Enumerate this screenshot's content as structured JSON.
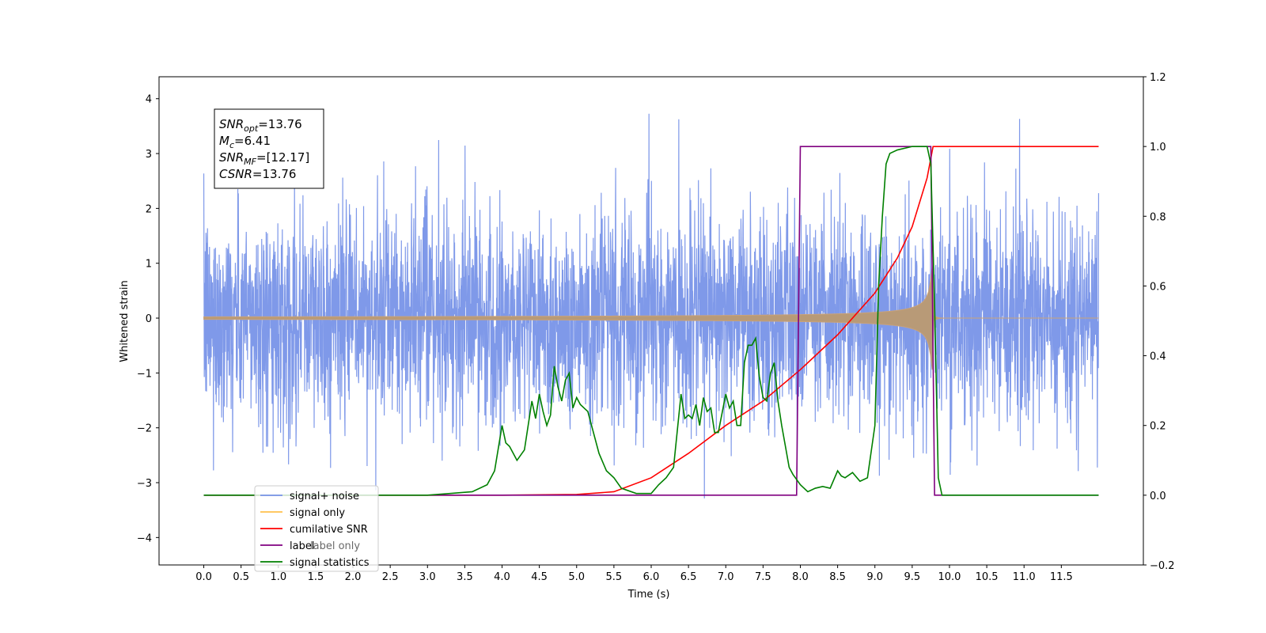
{
  "chart_data": {
    "type": "line",
    "xlabel": "Time (s)",
    "ylabel_left": "Whitened strain",
    "ylabel_right": "",
    "xlim": [
      -0.6,
      12.6
    ],
    "ylim_left": [
      -4.5,
      4.4
    ],
    "ylim_right": [
      -0.2,
      1.2
    ],
    "x_ticks": [
      0.0,
      0.5,
      1.0,
      1.5,
      2.0,
      2.5,
      3.0,
      3.5,
      4.0,
      4.5,
      5.0,
      5.5,
      6.0,
      6.5,
      7.0,
      7.5,
      8.0,
      8.5,
      9.0,
      9.5,
      10.0,
      10.5,
      11.0,
      11.5
    ],
    "x_tick_labels": [
      "0.0",
      "0.5",
      "1.0",
      "1.5",
      "2.0",
      "2.5",
      "3.0",
      "3.5",
      "4.0",
      "4.5",
      "5.0",
      "5.5",
      "6.0",
      "6.5",
      "7.0",
      "7.5",
      "8.0",
      "8.5",
      "9.0",
      "9.5",
      "10.0",
      "10.5",
      "11.0",
      "11.5"
    ],
    "y_left_ticks": [
      -4,
      -3,
      -2,
      -1,
      0,
      1,
      2,
      3,
      4
    ],
    "y_left_tick_labels": [
      "−4",
      "−3",
      "−2",
      "−1",
      "0",
      "1",
      "2",
      "3",
      "4"
    ],
    "y_right_ticks": [
      -0.2,
      0.0,
      0.2,
      0.4,
      0.6,
      0.8,
      1.0,
      1.2
    ],
    "y_right_tick_labels": [
      "−0.2",
      "0.0",
      "0.2",
      "0.4",
      "0.6",
      "0.8",
      "1.0",
      "1.2"
    ],
    "grid": false,
    "legend_position": "lower-left",
    "legend": [
      {
        "label": "signal+ noise",
        "color": "#7893e8"
      },
      {
        "label": "signal only",
        "color": "#ffc14d"
      },
      {
        "label": "cumilative SNR",
        "color": "#ff0000"
      },
      {
        "label": "label",
        "color": "#800080"
      },
      {
        "label": "signal statistics",
        "color": "#008000"
      }
    ],
    "hidden_legend_text": "label only",
    "annotation": {
      "lines": [
        {
          "base": "SNR",
          "sub": "opt",
          "value": "=13.76"
        },
        {
          "base": "M",
          "sub": "c",
          "value": "=6.41"
        },
        {
          "base": "SNR",
          "sub": "MF",
          "value": "=[12.17]"
        },
        {
          "base": "CSNR",
          "sub": "",
          "value": "=13.76"
        }
      ]
    },
    "series": [
      {
        "name": "signal+ noise",
        "axis": "left",
        "color": "#7893e8",
        "description_values": {
          "x_range": [
            0.0,
            12.0
          ],
          "typical_envelope": [
            -2.2,
            2.2
          ],
          "max": 4.05,
          "min": -4.1
        }
      },
      {
        "name": "signal only",
        "axis": "left",
        "color": "#ffc14d",
        "chirp": {
          "start": 0.0,
          "merger": 9.78,
          "end": 12.0,
          "peak_amplitude": 1.0
        }
      },
      {
        "name": "cumilative SNR",
        "axis": "right",
        "color": "#ff0000",
        "x": [
          0.0,
          4.0,
          5.0,
          5.5,
          6.0,
          6.5,
          7.0,
          7.5,
          8.0,
          8.5,
          9.0,
          9.3,
          9.5,
          9.7,
          9.78,
          9.79,
          12.0
        ],
        "y": [
          0.0,
          0.0,
          0.002,
          0.01,
          0.05,
          0.12,
          0.2,
          0.27,
          0.36,
          0.46,
          0.58,
          0.68,
          0.77,
          0.91,
          1.0,
          1.0,
          1.0
        ]
      },
      {
        "name": "label",
        "axis": "right",
        "color": "#800080",
        "x": [
          0.0,
          7.95,
          8.0,
          9.75,
          9.8,
          12.0
        ],
        "y": [
          0.0,
          0.0,
          1.0,
          1.0,
          0.0,
          0.0
        ]
      },
      {
        "name": "signal statistics",
        "axis": "right",
        "color": "#008000",
        "x": [
          0.0,
          3.0,
          3.3,
          3.6,
          3.8,
          3.9,
          4.0,
          4.05,
          4.1,
          4.2,
          4.3,
          4.4,
          4.45,
          4.5,
          4.55,
          4.6,
          4.65,
          4.7,
          4.75,
          4.8,
          4.85,
          4.9,
          4.95,
          5.0,
          5.05,
          5.1,
          5.15,
          5.2,
          5.3,
          5.4,
          5.5,
          5.6,
          5.8,
          6.0,
          6.1,
          6.2,
          6.3,
          6.4,
          6.45,
          6.5,
          6.55,
          6.6,
          6.65,
          6.7,
          6.75,
          6.8,
          6.85,
          6.9,
          7.0,
          7.05,
          7.1,
          7.15,
          7.2,
          7.25,
          7.3,
          7.35,
          7.4,
          7.45,
          7.5,
          7.55,
          7.6,
          7.65,
          7.7,
          7.75,
          7.8,
          7.85,
          7.9,
          8.0,
          8.1,
          8.2,
          8.3,
          8.4,
          8.5,
          8.55,
          8.6,
          8.7,
          8.8,
          8.9,
          9.0,
          9.05,
          9.1,
          9.15,
          9.2,
          9.3,
          9.5,
          9.7,
          9.75,
          9.8,
          9.85,
          9.9,
          12.0
        ],
        "y": [
          0.0,
          0.0,
          0.005,
          0.01,
          0.03,
          0.07,
          0.2,
          0.15,
          0.14,
          0.1,
          0.13,
          0.27,
          0.22,
          0.29,
          0.24,
          0.2,
          0.23,
          0.37,
          0.31,
          0.27,
          0.33,
          0.35,
          0.25,
          0.28,
          0.26,
          0.25,
          0.24,
          0.2,
          0.12,
          0.07,
          0.05,
          0.02,
          0.005,
          0.005,
          0.03,
          0.05,
          0.08,
          0.29,
          0.22,
          0.23,
          0.22,
          0.26,
          0.2,
          0.28,
          0.24,
          0.25,
          0.18,
          0.18,
          0.29,
          0.25,
          0.27,
          0.2,
          0.2,
          0.38,
          0.43,
          0.43,
          0.45,
          0.34,
          0.28,
          0.27,
          0.35,
          0.38,
          0.27,
          0.2,
          0.14,
          0.08,
          0.06,
          0.03,
          0.01,
          0.02,
          0.025,
          0.02,
          0.07,
          0.055,
          0.05,
          0.065,
          0.04,
          0.05,
          0.2,
          0.6,
          0.8,
          0.95,
          0.98,
          0.99,
          1.0,
          1.0,
          0.95,
          0.55,
          0.05,
          0.0,
          0.0
        ]
      }
    ]
  }
}
